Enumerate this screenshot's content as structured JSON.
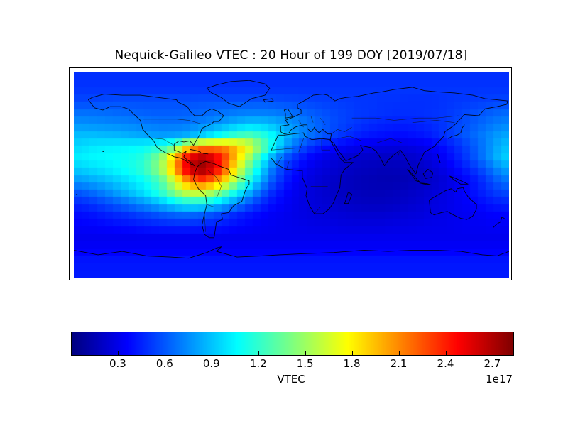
{
  "title": "Nequick-Galileo VTEC : 20 Hour of 199 DOY [2019/07/18]",
  "chart_data": {
    "type": "heatmap",
    "title": "Nequick-Galileo VTEC : 20 Hour of 199 DOY [2019/07/18]",
    "projection": "equirectangular world map",
    "lon_range": [
      -180,
      180
    ],
    "lat_range": [
      -90,
      90
    ],
    "colormap": "jet",
    "vmin": 0,
    "vmax": 2.83,
    "units_scale": "1e17",
    "colorbar": {
      "label": "VTEC",
      "offset_text": "1e17",
      "ticks": [
        0.3,
        0.6,
        0.9,
        1.2,
        1.5,
        1.8,
        2.1,
        2.4,
        2.7
      ],
      "orientation": "horizontal"
    },
    "grid_lon_centers_start": -175,
    "grid_lon_step": 10,
    "grid_lat_centers_start": 85,
    "grid_lat_step": -10,
    "grid": [
      [
        0.48,
        0.48,
        0.48,
        0.48,
        0.48,
        0.48,
        0.48,
        0.48,
        0.48,
        0.48,
        0.48,
        0.48,
        0.48,
        0.48,
        0.48,
        0.48,
        0.48,
        0.48,
        0.48,
        0.48,
        0.48,
        0.48,
        0.48,
        0.48,
        0.48,
        0.48,
        0.48,
        0.48,
        0.48,
        0.48,
        0.48,
        0.48,
        0.48,
        0.48,
        0.48,
        0.48
      ],
      [
        0.5,
        0.5,
        0.5,
        0.5,
        0.5,
        0.5,
        0.5,
        0.5,
        0.5,
        0.5,
        0.5,
        0.5,
        0.5,
        0.5,
        0.5,
        0.5,
        0.5,
        0.5,
        0.5,
        0.5,
        0.5,
        0.5,
        0.5,
        0.5,
        0.5,
        0.5,
        0.5,
        0.5,
        0.5,
        0.5,
        0.5,
        0.5,
        0.5,
        0.5,
        0.5,
        0.5
      ],
      [
        0.55,
        0.55,
        0.56,
        0.57,
        0.57,
        0.57,
        0.57,
        0.57,
        0.57,
        0.57,
        0.58,
        0.58,
        0.58,
        0.58,
        0.58,
        0.58,
        0.57,
        0.56,
        0.55,
        0.54,
        0.53,
        0.52,
        0.51,
        0.5,
        0.5,
        0.49,
        0.49,
        0.48,
        0.48,
        0.48,
        0.49,
        0.5,
        0.51,
        0.52,
        0.53,
        0.54
      ],
      [
        0.66,
        0.66,
        0.65,
        0.64,
        0.63,
        0.62,
        0.61,
        0.61,
        0.61,
        0.62,
        0.63,
        0.65,
        0.67,
        0.69,
        0.7,
        0.7,
        0.69,
        0.67,
        0.64,
        0.61,
        0.58,
        0.55,
        0.53,
        0.51,
        0.5,
        0.49,
        0.48,
        0.48,
        0.48,
        0.49,
        0.5,
        0.52,
        0.55,
        0.58,
        0.61,
        0.64
      ],
      [
        0.76,
        0.75,
        0.74,
        0.73,
        0.72,
        0.7,
        0.68,
        0.67,
        0.67,
        0.68,
        0.71,
        0.75,
        0.8,
        0.86,
        0.9,
        0.9,
        0.86,
        0.8,
        0.74,
        0.68,
        0.62,
        0.57,
        0.53,
        0.5,
        0.47,
        0.45,
        0.44,
        0.44,
        0.45,
        0.47,
        0.5,
        0.54,
        0.58,
        0.63,
        0.68,
        0.72
      ],
      [
        0.88,
        0.88,
        0.87,
        0.86,
        0.84,
        0.82,
        0.8,
        0.79,
        0.8,
        0.84,
        0.92,
        1.02,
        1.12,
        1.22,
        1.26,
        1.18,
        1.04,
        0.88,
        0.76,
        0.67,
        0.6,
        0.53,
        0.48,
        0.44,
        0.41,
        0.39,
        0.38,
        0.38,
        0.4,
        0.43,
        0.48,
        0.54,
        0.6,
        0.67,
        0.74,
        0.81
      ],
      [
        0.96,
        1.0,
        1.02,
        1.03,
        1.04,
        1.06,
        1.1,
        1.18,
        1.35,
        1.85,
        2.05,
        2.1,
        2.08,
        1.95,
        1.72,
        1.4,
        1.08,
        0.8,
        0.62,
        0.5,
        0.42,
        0.37,
        0.33,
        0.3,
        0.28,
        0.27,
        0.26,
        0.27,
        0.29,
        0.33,
        0.38,
        0.45,
        0.54,
        0.64,
        0.76,
        0.88
      ],
      [
        1.02,
        1.05,
        1.06,
        1.08,
        1.1,
        1.15,
        1.28,
        1.55,
        2.05,
        2.55,
        2.72,
        2.6,
        2.3,
        1.9,
        1.5,
        1.1,
        0.8,
        0.58,
        0.45,
        0.36,
        0.3,
        0.26,
        0.23,
        0.21,
        0.2,
        0.19,
        0.19,
        0.2,
        0.23,
        0.27,
        0.33,
        0.41,
        0.51,
        0.63,
        0.77,
        0.92
      ],
      [
        0.92,
        0.96,
        1.0,
        1.05,
        1.1,
        1.18,
        1.32,
        1.6,
        2.1,
        2.62,
        2.78,
        2.62,
        2.2,
        1.72,
        1.3,
        0.95,
        0.66,
        0.47,
        0.37,
        0.3,
        0.26,
        0.23,
        0.2,
        0.18,
        0.17,
        0.16,
        0.16,
        0.17,
        0.19,
        0.23,
        0.28,
        0.35,
        0.43,
        0.53,
        0.65,
        0.79
      ],
      [
        0.78,
        0.82,
        0.86,
        0.92,
        0.98,
        1.05,
        1.15,
        1.35,
        1.72,
        2.1,
        2.3,
        2.15,
        1.85,
        1.48,
        1.12,
        0.82,
        0.58,
        0.42,
        0.33,
        0.27,
        0.23,
        0.2,
        0.18,
        0.16,
        0.15,
        0.14,
        0.14,
        0.15,
        0.17,
        0.2,
        0.24,
        0.29,
        0.36,
        0.44,
        0.55,
        0.66
      ],
      [
        0.6,
        0.65,
        0.72,
        0.8,
        0.88,
        0.97,
        1.08,
        1.25,
        1.48,
        1.65,
        1.68,
        1.55,
        1.33,
        1.08,
        0.85,
        0.62,
        0.46,
        0.36,
        0.3,
        0.26,
        0.23,
        0.2,
        0.18,
        0.17,
        0.16,
        0.16,
        0.17,
        0.19,
        0.21,
        0.24,
        0.27,
        0.31,
        0.36,
        0.42,
        0.49,
        0.55
      ],
      [
        0.46,
        0.5,
        0.55,
        0.61,
        0.67,
        0.74,
        0.81,
        0.9,
        1.0,
        1.07,
        1.06,
        0.97,
        0.85,
        0.72,
        0.58,
        0.46,
        0.38,
        0.33,
        0.29,
        0.26,
        0.24,
        0.22,
        0.2,
        0.19,
        0.18,
        0.18,
        0.19,
        0.21,
        0.23,
        0.26,
        0.28,
        0.31,
        0.34,
        0.37,
        0.41,
        0.44
      ],
      [
        0.38,
        0.4,
        0.43,
        0.46,
        0.49,
        0.53,
        0.56,
        0.6,
        0.63,
        0.64,
        0.62,
        0.57,
        0.51,
        0.45,
        0.4,
        0.36,
        0.33,
        0.31,
        0.29,
        0.27,
        0.26,
        0.25,
        0.24,
        0.23,
        0.23,
        0.23,
        0.24,
        0.25,
        0.26,
        0.28,
        0.29,
        0.31,
        0.32,
        0.33,
        0.35,
        0.36
      ],
      [
        0.34,
        0.35,
        0.36,
        0.38,
        0.39,
        0.41,
        0.43,
        0.44,
        0.45,
        0.45,
        0.44,
        0.42,
        0.4,
        0.37,
        0.35,
        0.33,
        0.32,
        0.31,
        0.3,
        0.29,
        0.28,
        0.28,
        0.27,
        0.27,
        0.27,
        0.27,
        0.28,
        0.28,
        0.29,
        0.3,
        0.3,
        0.31,
        0.32,
        0.32,
        0.33,
        0.33
      ],
      [
        0.31,
        0.31,
        0.31,
        0.31,
        0.31,
        0.31,
        0.31,
        0.31,
        0.31,
        0.31,
        0.31,
        0.31,
        0.31,
        0.31,
        0.31,
        0.31,
        0.31,
        0.31,
        0.31,
        0.31,
        0.31,
        0.31,
        0.31,
        0.31,
        0.31,
        0.31,
        0.31,
        0.31,
        0.31,
        0.31,
        0.31,
        0.31,
        0.31,
        0.31,
        0.31,
        0.31
      ],
      [
        0.34,
        0.34,
        0.34,
        0.34,
        0.34,
        0.34,
        0.34,
        0.34,
        0.34,
        0.34,
        0.34,
        0.34,
        0.34,
        0.34,
        0.34,
        0.34,
        0.34,
        0.34,
        0.34,
        0.34,
        0.34,
        0.34,
        0.34,
        0.34,
        0.34,
        0.34,
        0.34,
        0.34,
        0.34,
        0.34,
        0.34,
        0.34,
        0.34,
        0.34,
        0.34,
        0.34
      ],
      [
        0.41,
        0.41,
        0.41,
        0.41,
        0.41,
        0.41,
        0.41,
        0.41,
        0.41,
        0.41,
        0.41,
        0.41,
        0.41,
        0.41,
        0.41,
        0.41,
        0.41,
        0.41,
        0.41,
        0.41,
        0.41,
        0.41,
        0.41,
        0.41,
        0.41,
        0.41,
        0.41,
        0.41,
        0.41,
        0.41,
        0.41,
        0.41,
        0.41,
        0.41,
        0.41,
        0.41
      ],
      [
        0.42,
        0.42,
        0.42,
        0.42,
        0.42,
        0.42,
        0.42,
        0.42,
        0.42,
        0.42,
        0.42,
        0.42,
        0.42,
        0.42,
        0.42,
        0.42,
        0.42,
        0.42,
        0.42,
        0.42,
        0.42,
        0.42,
        0.42,
        0.42,
        0.42,
        0.42,
        0.42,
        0.42,
        0.42,
        0.42,
        0.42,
        0.42,
        0.42,
        0.42,
        0.42,
        0.42
      ]
    ]
  }
}
